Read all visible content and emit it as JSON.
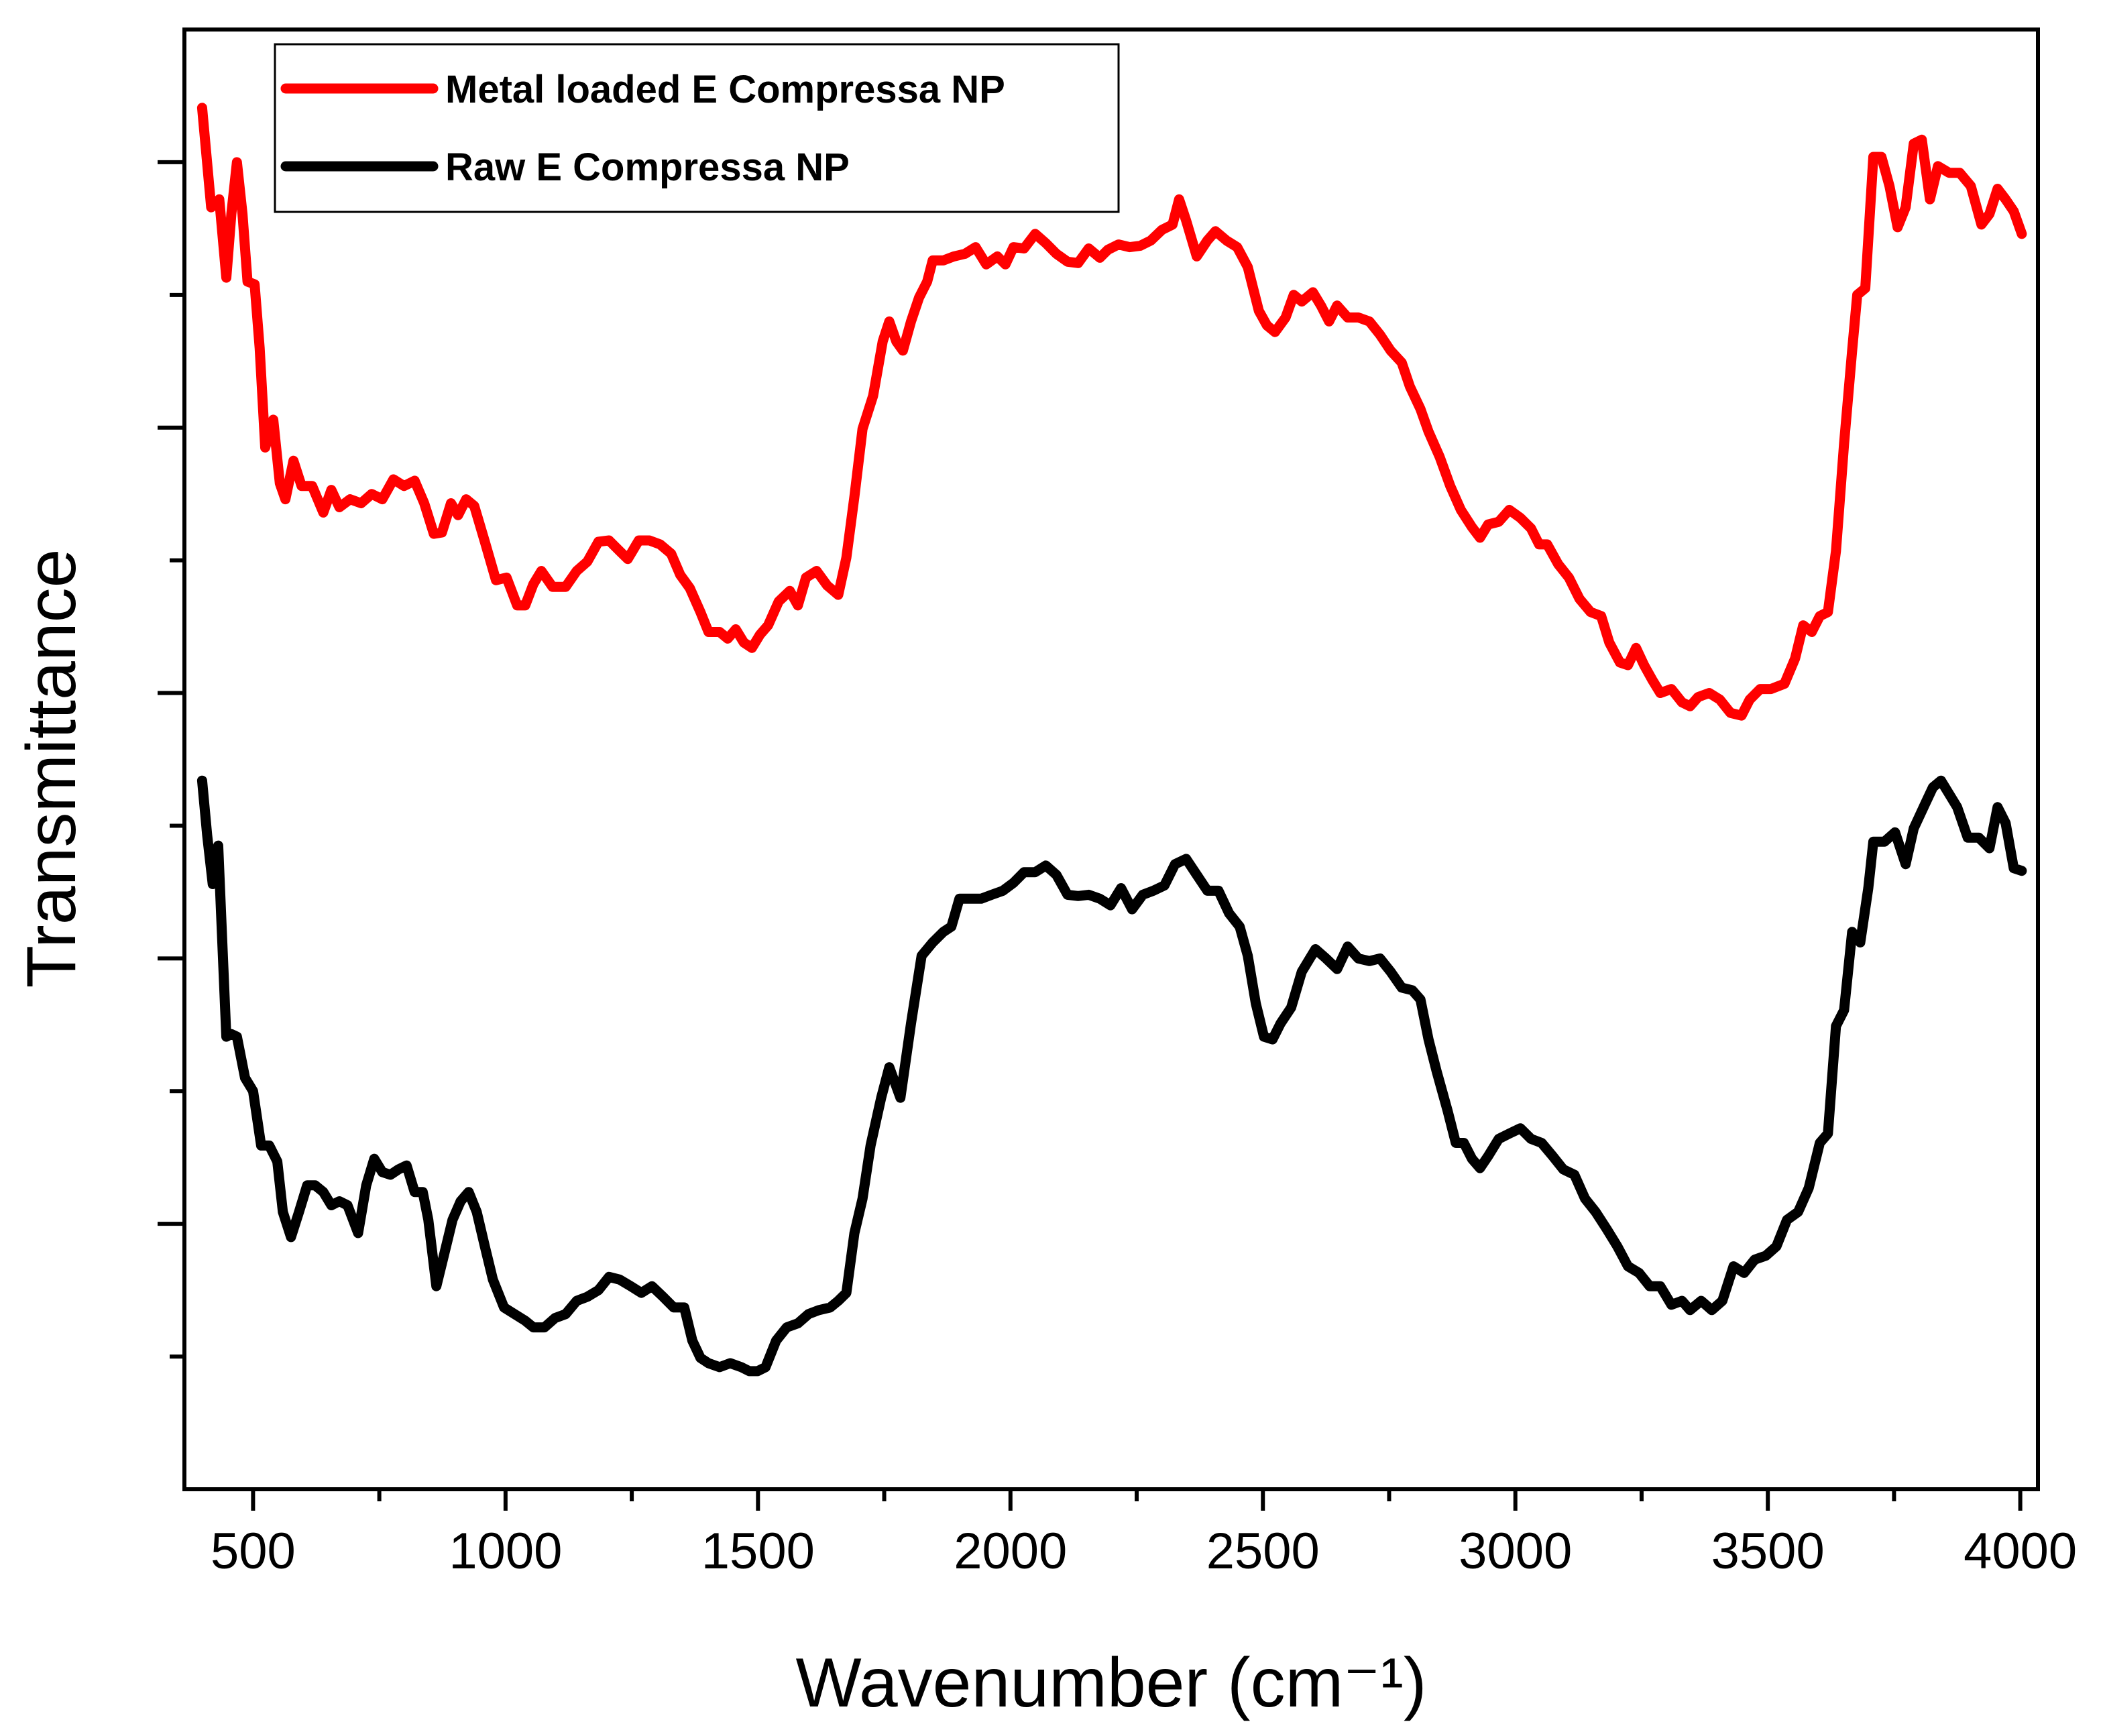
{
  "chart_data": {
    "type": "line",
    "xlabel": "Wavenumber (cm⁻¹)",
    "ylabel": "Transmittance",
    "xlim": [
      364,
      4035
    ],
    "xticks": [
      500,
      1000,
      1500,
      2000,
      2500,
      3000,
      3500,
      4000
    ],
    "xminor_ticks": [
      750,
      1250,
      1750,
      2250,
      2750,
      3250,
      3750
    ],
    "ylim": [
      0,
      11
    ],
    "yticks": [
      1,
      2,
      3,
      4,
      5,
      6,
      7,
      8,
      9,
      10
    ],
    "ytick_labels": false,
    "grid": false,
    "legend": "upper left",
    "series": [
      {
        "name": "Metal loaded E Compressa NP",
        "color": "#ff0000",
        "x": [
          399,
          417,
          433,
          447,
          457,
          468,
          479,
          489,
          503,
          513,
          524,
          540,
          553,
          564,
          580,
          596,
          617,
          639,
          655,
          671,
          692,
          714,
          735,
          756,
          778,
          799,
          820,
          839,
          858,
          874,
          892,
          906,
          922,
          938,
          959,
          981,
          1002,
          1023,
          1039,
          1055,
          1071,
          1093,
          1119,
          1141,
          1162,
          1184,
          1205,
          1226,
          1242,
          1264,
          1285,
          1306,
          1328,
          1346,
          1365,
          1386,
          1402,
          1424,
          1440,
          1456,
          1472,
          1488,
          1504,
          1520,
          1541,
          1563,
          1579,
          1595,
          1616,
          1637,
          1659,
          1675,
          1691,
          1707,
          1728,
          1747,
          1760,
          1774,
          1787,
          1803,
          1819,
          1835,
          1846,
          1867,
          1888,
          1910,
          1931,
          1952,
          1974,
          1990,
          2006,
          2027,
          2049,
          2070,
          2091,
          2113,
          2134,
          2155,
          2177,
          2193,
          2214,
          2236,
          2257,
          2278,
          2300,
          2321,
          2334,
          2348,
          2369,
          2390,
          2406,
          2428,
          2449,
          2470,
          2492,
          2508,
          2524,
          2545,
          2561,
          2577,
          2599,
          2615,
          2631,
          2647,
          2668,
          2689,
          2711,
          2732,
          2753,
          2775,
          2791,
          2812,
          2828,
          2850,
          2871,
          2892,
          2914,
          2930,
          2946,
          2967,
          2988,
          3010,
          3031,
          3047,
          3063,
          3085,
          3106,
          3127,
          3149,
          3170,
          3186,
          3207,
          3223,
          3239,
          3255,
          3271,
          3287,
          3309,
          3330,
          3346,
          3362,
          3384,
          3405,
          3426,
          3448,
          3464,
          3485,
          3506,
          3533,
          3554,
          3570,
          3587,
          3603,
          3619,
          3635,
          3651,
          3667,
          3677,
          3693,
          3709,
          3725,
          3741,
          3757,
          3773,
          3789,
          3805,
          3821,
          3837,
          3859,
          3880,
          3902,
          3923,
          3939,
          3955,
          3971,
          3987,
          4003
        ],
        "values": [
          10.41,
          9.66,
          9.72,
          9.13,
          9.61,
          10.0,
          9.61,
          9.1,
          9.08,
          8.6,
          7.85,
          8.06,
          7.58,
          7.46,
          7.75,
          7.56,
          7.56,
          7.36,
          7.53,
          7.4,
          7.46,
          7.43,
          7.5,
          7.46,
          7.61,
          7.56,
          7.6,
          7.43,
          7.2,
          7.21,
          7.43,
          7.34,
          7.46,
          7.41,
          7.14,
          6.85,
          6.87,
          6.66,
          6.66,
          6.82,
          6.92,
          6.8,
          6.8,
          6.92,
          6.99,
          7.14,
          7.15,
          7.07,
          7.01,
          7.15,
          7.15,
          7.12,
          7.05,
          6.89,
          6.79,
          6.61,
          6.46,
          6.46,
          6.41,
          6.48,
          6.38,
          6.34,
          6.44,
          6.51,
          6.69,
          6.77,
          6.66,
          6.87,
          6.92,
          6.81,
          6.74,
          7.02,
          7.48,
          7.99,
          8.24,
          8.65,
          8.8,
          8.65,
          8.58,
          8.8,
          8.98,
          9.1,
          9.26,
          9.26,
          9.29,
          9.31,
          9.36,
          9.23,
          9.29,
          9.23,
          9.36,
          9.35,
          9.46,
          9.39,
          9.31,
          9.25,
          9.24,
          9.35,
          9.28,
          9.34,
          9.38,
          9.36,
          9.37,
          9.41,
          9.49,
          9.53,
          9.72,
          9.56,
          9.29,
          9.41,
          9.48,
          9.41,
          9.36,
          9.21,
          8.88,
          8.77,
          8.72,
          8.83,
          9.0,
          8.95,
          9.02,
          8.92,
          8.8,
          8.92,
          8.83,
          8.83,
          8.8,
          8.7,
          8.58,
          8.49,
          8.31,
          8.14,
          7.97,
          7.78,
          7.56,
          7.38,
          7.25,
          7.17,
          7.27,
          7.29,
          7.38,
          7.32,
          7.24,
          7.12,
          7.12,
          6.97,
          6.87,
          6.71,
          6.61,
          6.58,
          6.38,
          6.23,
          6.21,
          6.34,
          6.21,
          6.1,
          6.0,
          6.03,
          5.93,
          5.9,
          5.97,
          6.0,
          5.95,
          5.85,
          5.83,
          5.95,
          6.03,
          6.03,
          6.07,
          6.26,
          6.51,
          6.46,
          6.58,
          6.61,
          7.07,
          7.88,
          8.58,
          9.0,
          9.05,
          10.04,
          10.04,
          9.82,
          9.51,
          9.66,
          10.14,
          10.17,
          9.72,
          9.97,
          9.92,
          9.92,
          9.82,
          9.53,
          9.61,
          9.8,
          9.72,
          9.63,
          9.46
        ]
      },
      {
        "name": "Raw E Compressa NP",
        "color": "#000000",
        "x": [
          399,
          409,
          420,
          431,
          439,
          447,
          457,
          468,
          484,
          500,
          516,
          532,
          548,
          559,
          575,
          591,
          607,
          623,
          639,
          655,
          671,
          687,
          708,
          724,
          740,
          756,
          772,
          788,
          804,
          820,
          836,
          847,
          863,
          879,
          895,
          911,
          927,
          943,
          959,
          975,
          997,
          1018,
          1039,
          1055,
          1077,
          1098,
          1119,
          1141,
          1162,
          1184,
          1205,
          1226,
          1248,
          1269,
          1290,
          1312,
          1333,
          1354,
          1370,
          1386,
          1402,
          1424,
          1445,
          1467,
          1483,
          1499,
          1515,
          1536,
          1557,
          1579,
          1600,
          1621,
          1643,
          1659,
          1675,
          1691,
          1707,
          1723,
          1744,
          1760,
          1782,
          1803,
          1824,
          1846,
          1867,
          1883,
          1899,
          1920,
          1942,
          1963,
          1985,
          2006,
          2027,
          2049,
          2070,
          2091,
          2113,
          2134,
          2155,
          2177,
          2198,
          2219,
          2241,
          2262,
          2283,
          2305,
          2326,
          2348,
          2369,
          2390,
          2412,
          2433,
          2454,
          2470,
          2486,
          2502,
          2519,
          2535,
          2556,
          2577,
          2604,
          2625,
          2647,
          2668,
          2689,
          2711,
          2732,
          2753,
          2775,
          2796,
          2812,
          2828,
          2844,
          2866,
          2882,
          2898,
          2914,
          2930,
          2946,
          2967,
          2988,
          3010,
          3031,
          3052,
          3074,
          3095,
          3117,
          3138,
          3159,
          3181,
          3202,
          3223,
          3245,
          3266,
          3287,
          3309,
          3330,
          3346,
          3368,
          3389,
          3410,
          3432,
          3453,
          3474,
          3496,
          3517,
          3538,
          3560,
          3581,
          3603,
          3619,
          3635,
          3651,
          3667,
          3683,
          3699,
          3709,
          3731,
          3752,
          3773,
          3789,
          3811,
          3827,
          3843,
          3859,
          3875,
          3896,
          3918,
          3939,
          3955,
          3971,
          3987,
          4003
        ],
        "values": [
          5.34,
          4.93,
          4.56,
          4.85,
          4.12,
          3.41,
          3.43,
          3.41,
          3.1,
          3.0,
          2.59,
          2.59,
          2.47,
          2.09,
          1.9,
          2.09,
          2.29,
          2.29,
          2.24,
          2.14,
          2.17,
          2.14,
          1.93,
          2.29,
          2.49,
          2.39,
          2.37,
          2.41,
          2.44,
          2.24,
          2.24,
          2.03,
          1.53,
          1.78,
          2.03,
          2.17,
          2.24,
          2.09,
          1.83,
          1.58,
          1.37,
          1.32,
          1.27,
          1.22,
          1.22,
          1.29,
          1.32,
          1.42,
          1.45,
          1.5,
          1.6,
          1.58,
          1.53,
          1.48,
          1.53,
          1.45,
          1.37,
          1.37,
          1.12,
          0.99,
          0.95,
          0.92,
          0.95,
          0.92,
          0.89,
          0.89,
          0.92,
          1.12,
          1.22,
          1.25,
          1.32,
          1.35,
          1.37,
          1.42,
          1.48,
          1.93,
          2.19,
          2.59,
          2.95,
          3.18,
          2.95,
          3.51,
          4.02,
          4.12,
          4.2,
          4.24,
          4.45,
          4.45,
          4.45,
          4.48,
          4.51,
          4.57,
          4.65,
          4.65,
          4.7,
          4.63,
          4.48,
          4.47,
          4.48,
          4.45,
          4.4,
          4.53,
          4.37,
          4.48,
          4.51,
          4.55,
          4.71,
          4.75,
          4.63,
          4.51,
          4.51,
          4.34,
          4.24,
          4.02,
          3.66,
          3.41,
          3.39,
          3.51,
          3.63,
          3.9,
          4.07,
          4.0,
          3.92,
          4.09,
          4.0,
          3.98,
          4.0,
          3.9,
          3.78,
          3.76,
          3.69,
          3.39,
          3.15,
          2.85,
          2.61,
          2.61,
          2.49,
          2.42,
          2.51,
          2.64,
          2.68,
          2.72,
          2.64,
          2.61,
          2.51,
          2.41,
          2.37,
          2.19,
          2.09,
          1.96,
          1.83,
          1.68,
          1.63,
          1.53,
          1.53,
          1.39,
          1.42,
          1.35,
          1.42,
          1.35,
          1.42,
          1.68,
          1.63,
          1.73,
          1.76,
          1.83,
          2.03,
          2.09,
          2.27,
          2.61,
          2.68,
          3.49,
          3.61,
          4.2,
          4.12,
          4.53,
          4.88,
          4.88,
          4.95,
          4.71,
          4.98,
          5.16,
          5.29,
          5.34,
          5.24,
          5.14,
          4.91,
          4.91,
          4.83,
          5.14,
          5.02,
          4.68,
          4.66
        ]
      }
    ]
  }
}
